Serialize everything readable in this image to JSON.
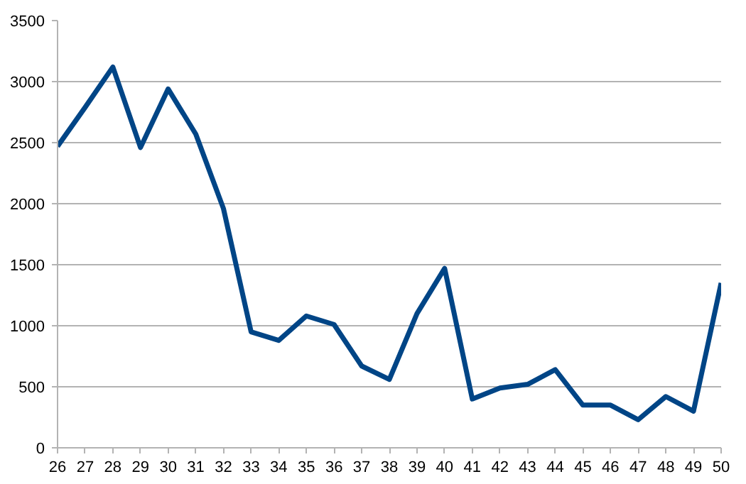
{
  "chart_data": {
    "type": "line",
    "categories": [
      "26",
      "27",
      "28",
      "29",
      "30",
      "31",
      "32",
      "33",
      "34",
      "35",
      "36",
      "37",
      "38",
      "39",
      "40",
      "41",
      "42",
      "43",
      "44",
      "45",
      "46",
      "47",
      "48",
      "49",
      "50"
    ],
    "series": [
      {
        "color": "#004586",
        "values": [
          2470,
          2790,
          3120,
          2460,
          2940,
          2570,
          1960,
          950,
          880,
          1080,
          1010,
          670,
          560,
          1100,
          1470,
          400,
          490,
          520,
          640,
          350,
          350,
          230,
          420,
          300,
          1350
        ]
      }
    ],
    "ylim": [
      0,
      3500
    ],
    "yticks": [
      0,
      500,
      1000,
      1500,
      2000,
      2500,
      3000,
      3500
    ],
    "grid": "y",
    "line_style": "solid",
    "marker": "none"
  }
}
